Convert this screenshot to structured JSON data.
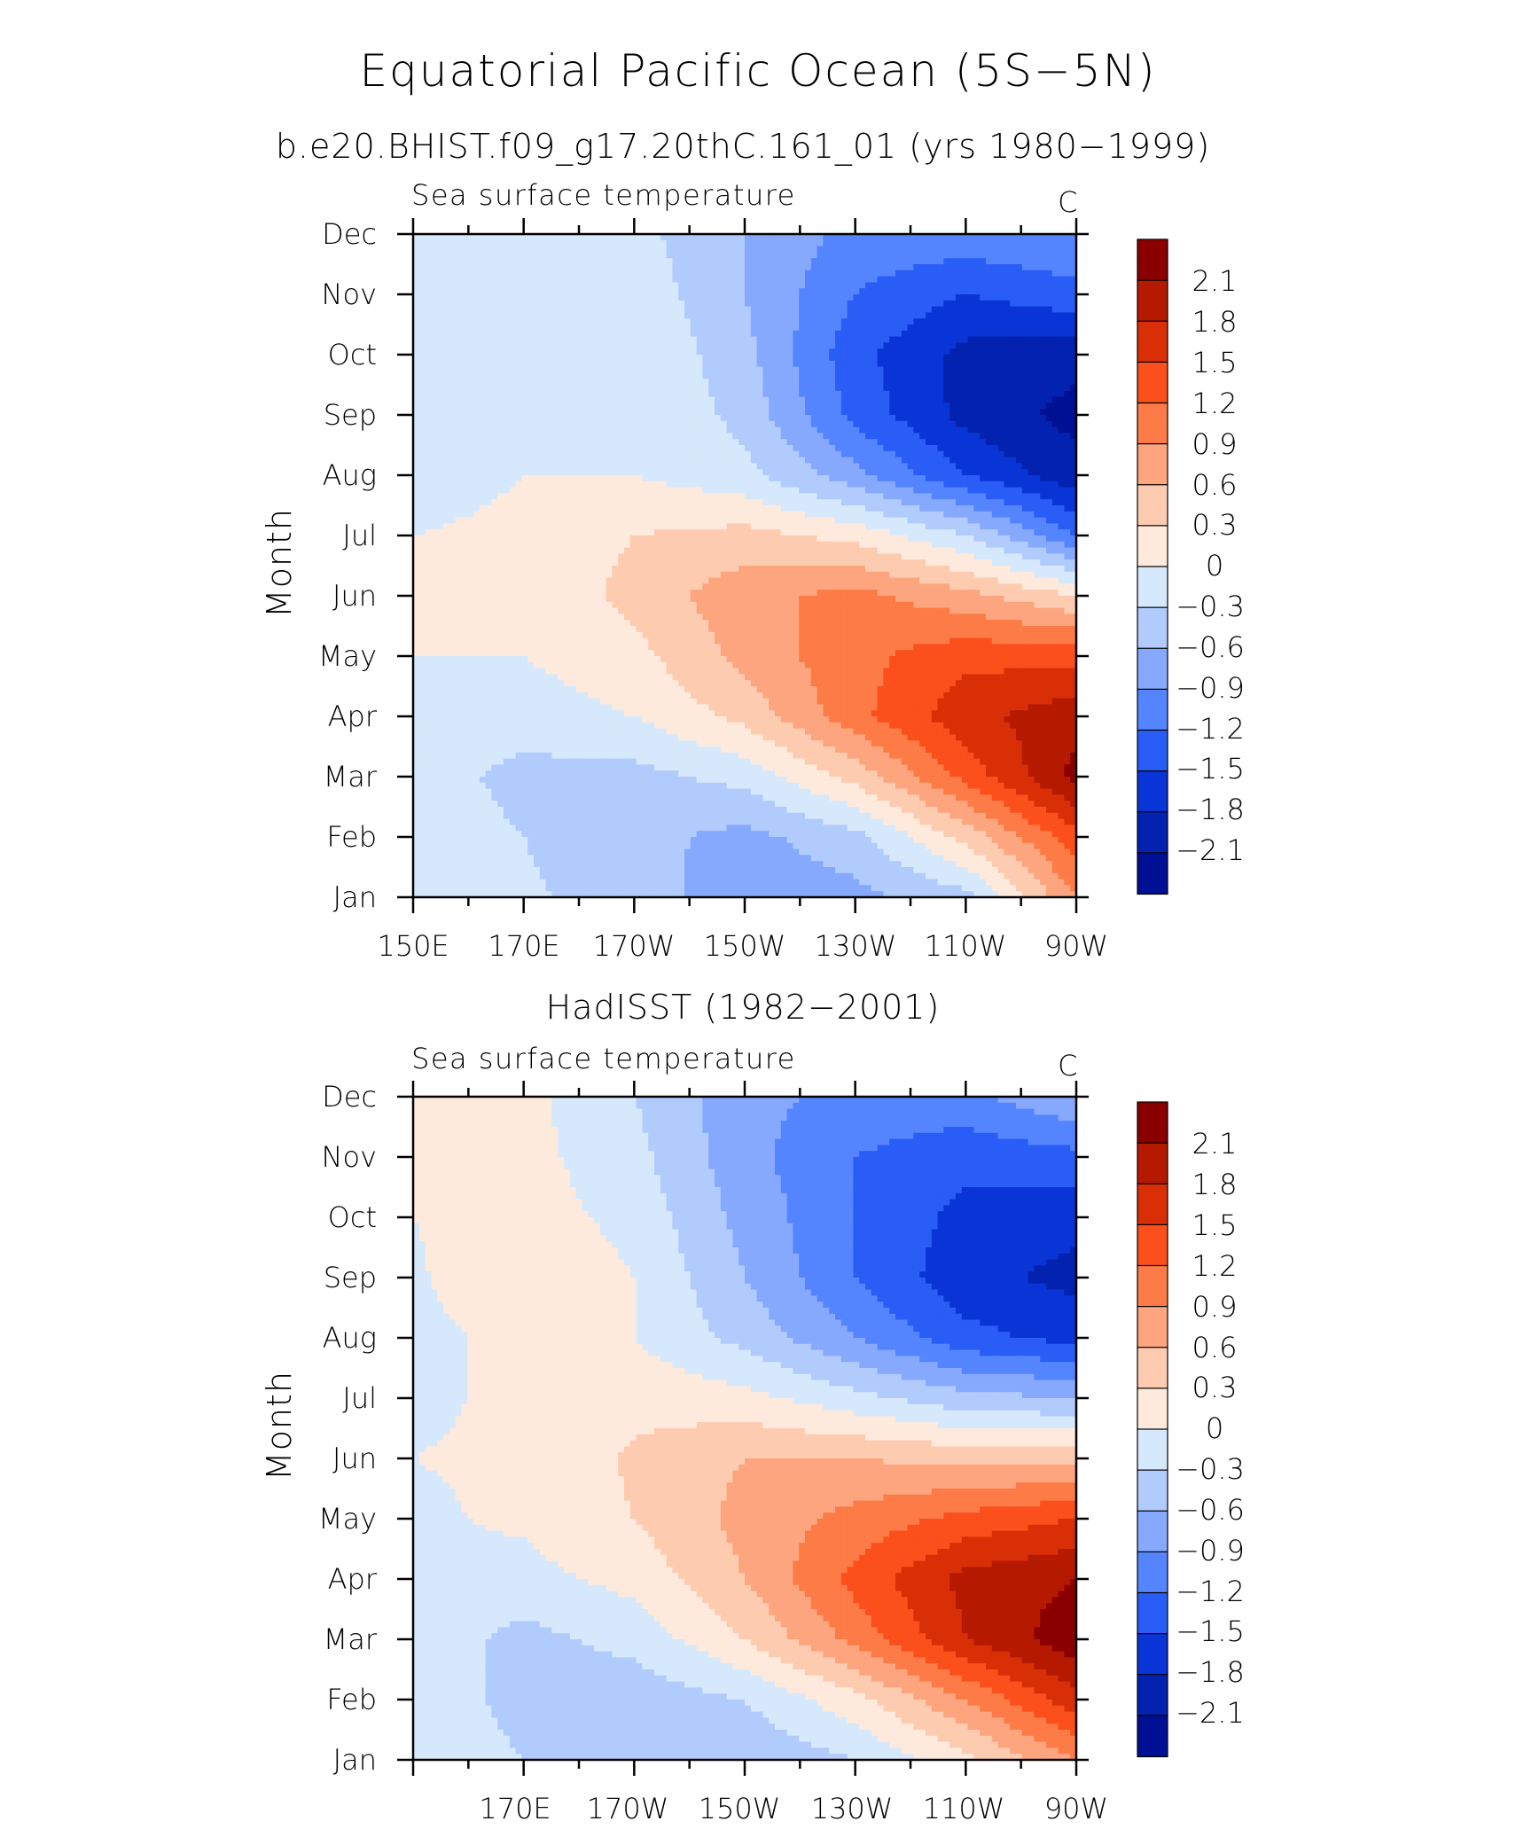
{
  "figure": {
    "title": "Equatorial Pacific Ocean (5S−5N)"
  },
  "panels": {
    "top": {
      "title": "b.e20.BHIST.f09_g17.20thC.161_01 (yrs 1980−1999)",
      "left_label": "Sea surface temperature",
      "right_label": "C",
      "ylabel": "Month",
      "x_ticks": [
        "150E",
        "170E",
        "170W",
        "150W",
        "130W",
        "110W",
        "90W"
      ],
      "y_ticks": [
        "Jan",
        "Feb",
        "Mar",
        "Apr",
        "May",
        "Jun",
        "Jul",
        "Aug",
        "Sep",
        "Oct",
        "Nov",
        "Dec"
      ]
    },
    "bottom": {
      "title": "HadISST (1982−2001)",
      "left_label": "Sea surface temperature",
      "right_label": "C",
      "ylabel": "Month",
      "x_ticks": [
        "",
        "170E",
        "170W",
        "150W",
        "130W",
        "110W",
        "90W"
      ],
      "y_ticks": [
        "Jan",
        "Feb",
        "Mar",
        "Apr",
        "May",
        "Jun",
        "Jul",
        "Aug",
        "Sep",
        "Oct",
        "Nov",
        "Dec"
      ]
    }
  },
  "colorbar": {
    "levels": [
      "2.1",
      "1.8",
      "1.5",
      "1.2",
      "0.9",
      "0.6",
      "0.3",
      "0",
      "−0.3",
      "−0.6",
      "−0.9",
      "−1.2",
      "−1.5",
      "−1.8",
      "−2.1"
    ],
    "colors": [
      "#8a0000",
      "#b51a00",
      "#d92f07",
      "#fb4f1c",
      "#fc7b46",
      "#fca57f",
      "#fdcbb0",
      "#feeadc",
      "#d6e8fb",
      "#b2cbfd",
      "#86a9fe",
      "#5585fe",
      "#2a5df5",
      "#0a35d6",
      "#0422b0",
      "#001094"
    ]
  },
  "chart_data": [
    {
      "type": "heatmap",
      "subtype": "filled-contour (Hovmoller)",
      "title": "b.e20.BHIST.f09_g17.20thC.161_01 (yrs 1980−1999)",
      "variable": "Sea surface temperature",
      "units": "C",
      "xlabel": "",
      "ylabel": "Month",
      "x": [
        150,
        170,
        190,
        210,
        230,
        250,
        270
      ],
      "x_tick_labels": [
        "150E",
        "170E",
        "170W",
        "150W",
        "130W",
        "110W",
        "90W"
      ],
      "xlim": [
        150,
        270
      ],
      "y": [
        "Jan",
        "Feb",
        "Mar",
        "Apr",
        "May",
        "Jun",
        "Jul",
        "Aug",
        "Sep",
        "Oct",
        "Nov",
        "Dec"
      ],
      "contour_levels": [
        -2.1,
        -1.8,
        -1.5,
        -1.2,
        -0.9,
        -0.6,
        -0.3,
        0,
        0.3,
        0.6,
        0.9,
        1.2,
        1.5,
        1.8,
        2.1
      ],
      "values": [
        [
          -0.1,
          -0.25,
          -0.45,
          -0.8,
          -0.7,
          -0.4,
          0.9
        ],
        [
          -0.1,
          -0.3,
          -0.5,
          -0.7,
          -0.4,
          0.4,
          1.4
        ],
        [
          -0.15,
          -0.4,
          -0.4,
          -0.2,
          0.4,
          1.3,
          2.2
        ],
        [
          -0.1,
          -0.15,
          0.0,
          0.4,
          1.1,
          1.7,
          2.0
        ],
        [
          0.0,
          0.0,
          0.2,
          0.7,
          1.1,
          1.4,
          1.4
        ],
        [
          0.0,
          0.05,
          0.4,
          0.8,
          1.0,
          0.7,
          0.3
        ],
        [
          0.0,
          0.05,
          0.3,
          0.4,
          0.2,
          -0.3,
          -1.2
        ],
        [
          -0.1,
          0.0,
          0.0,
          -0.2,
          -0.8,
          -1.5,
          -2.0
        ],
        [
          -0.2,
          -0.1,
          0.0,
          -0.4,
          -1.3,
          -1.9,
          -2.2
        ],
        [
          -0.2,
          -0.05,
          0.0,
          -0.5,
          -1.4,
          -1.9,
          -2.0
        ],
        [
          -0.1,
          0.0,
          -0.1,
          -0.6,
          -1.2,
          -1.5,
          -1.3
        ],
        [
          0.0,
          0.0,
          -0.2,
          -0.6,
          -1.0,
          -1.0,
          -0.9
        ]
      ]
    },
    {
      "type": "heatmap",
      "subtype": "filled-contour (Hovmoller)",
      "title": "HadISST (1982−2001)",
      "variable": "Sea surface temperature",
      "units": "C",
      "xlabel": "",
      "ylabel": "Month",
      "x": [
        150,
        170,
        190,
        210,
        230,
        250,
        270
      ],
      "x_tick_labels": [
        "",
        "170E",
        "170W",
        "150W",
        "130W",
        "110W",
        "90W"
      ],
      "xlim": [
        150,
        270
      ],
      "y": [
        "Jan",
        "Feb",
        "Mar",
        "Apr",
        "May",
        "Jun",
        "Jul",
        "Aug",
        "Sep",
        "Oct",
        "Nov",
        "Dec"
      ],
      "contour_levels": [
        -2.1,
        -1.8,
        -1.5,
        -1.2,
        -0.9,
        -0.6,
        -0.3,
        0,
        0.3,
        0.6,
        0.9,
        1.2,
        1.5,
        1.8,
        2.1
      ],
      "values": [
        [
          -0.1,
          -0.3,
          -0.5,
          -0.55,
          -0.3,
          0.2,
          0.9
        ],
        [
          -0.1,
          -0.4,
          -0.5,
          -0.3,
          0.2,
          0.9,
          1.7
        ],
        [
          -0.1,
          -0.4,
          -0.2,
          0.3,
          1.0,
          1.8,
          2.3
        ],
        [
          -0.1,
          -0.1,
          0.1,
          0.6,
          1.3,
          1.9,
          2.1
        ],
        [
          -0.05,
          0.05,
          0.3,
          0.7,
          1.0,
          1.3,
          1.5
        ],
        [
          0.0,
          0.05,
          0.35,
          0.6,
          0.6,
          0.5,
          0.5
        ],
        [
          -0.05,
          0.05,
          0.2,
          0.1,
          -0.2,
          -0.5,
          -0.6
        ],
        [
          -0.1,
          0.1,
          0.0,
          -0.4,
          -0.9,
          -1.4,
          -1.6
        ],
        [
          -0.05,
          0.3,
          0.0,
          -0.6,
          -1.2,
          -1.7,
          -1.9
        ],
        [
          0.0,
          0.15,
          -0.1,
          -0.7,
          -1.2,
          -1.6,
          -1.7
        ],
        [
          0.05,
          0.1,
          -0.2,
          -0.8,
          -1.2,
          -1.4,
          -1.3
        ],
        [
          0.1,
          0.1,
          -0.3,
          -0.8,
          -1.0,
          -1.0,
          -0.6
        ]
      ]
    }
  ]
}
